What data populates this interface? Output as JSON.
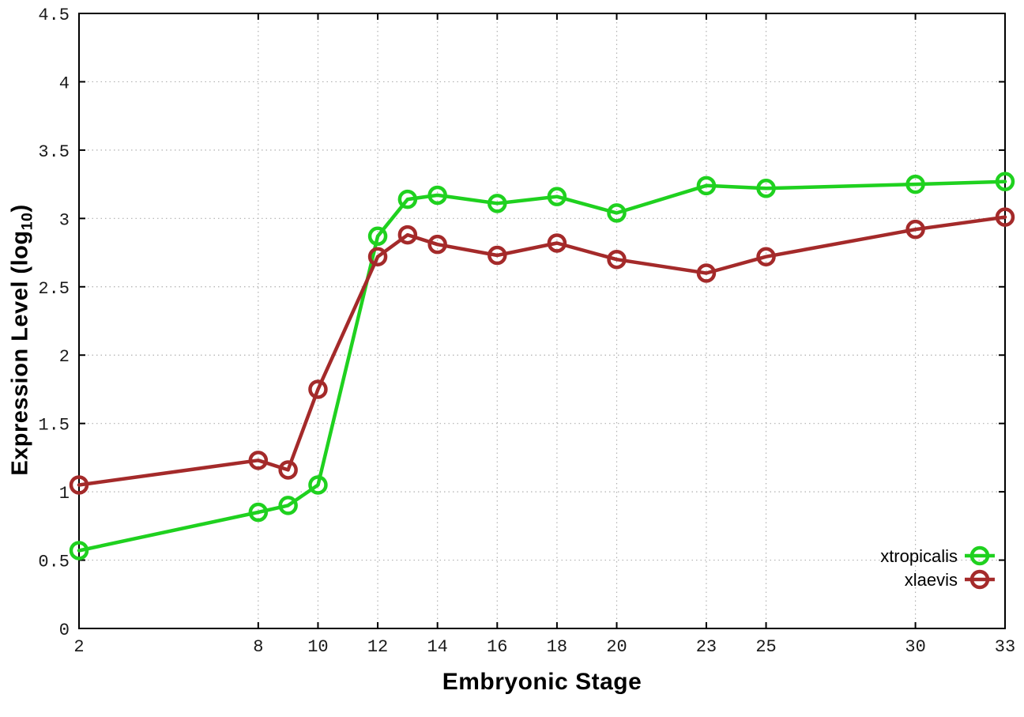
{
  "chart_data": {
    "type": "line",
    "title": "",
    "xlabel": "Embryonic Stage",
    "ylabel": {
      "prefix": "Expression Level (log",
      "sub": "10",
      "suffix": ")"
    },
    "xlim": [
      2,
      33
    ],
    "ylim": [
      0,
      4.5
    ],
    "x_ticks": [
      2,
      8,
      10,
      12,
      14,
      16,
      18,
      20,
      23,
      25,
      30,
      33
    ],
    "y_ticks": [
      0,
      0.5,
      1,
      1.5,
      2,
      2.5,
      3,
      3.5,
      4,
      4.5
    ],
    "y_tick_labels": [
      "0",
      "0.5",
      "1",
      "1.5",
      "2",
      "2.5",
      "3",
      "3.5",
      "4",
      "4.5"
    ],
    "grid": true,
    "grid_style": "dotted",
    "legend_position": "inside-bottom-right",
    "x": [
      2,
      8,
      9,
      10,
      12,
      13,
      14,
      16,
      18,
      20,
      23,
      25,
      30,
      33
    ],
    "series": [
      {
        "name": "xtropicalis",
        "color": "#1fd11f",
        "marker": "open-circle",
        "values": [
          0.57,
          0.85,
          0.9,
          1.05,
          2.87,
          3.14,
          3.17,
          3.11,
          3.16,
          3.04,
          3.24,
          3.22,
          3.25,
          3.27
        ]
      },
      {
        "name": "xlaevis",
        "color": "#a42a2a",
        "marker": "open-circle",
        "values": [
          1.05,
          1.23,
          1.16,
          1.75,
          2.72,
          2.88,
          2.81,
          2.73,
          2.82,
          2.7,
          2.6,
          2.72,
          2.92,
          3.01
        ]
      }
    ],
    "colors": {
      "background": "#ffffff",
      "axis": "#000000",
      "grid": "#b0b0b0",
      "tick_label": "#1a1a1a",
      "legend_text": "#000000"
    }
  }
}
